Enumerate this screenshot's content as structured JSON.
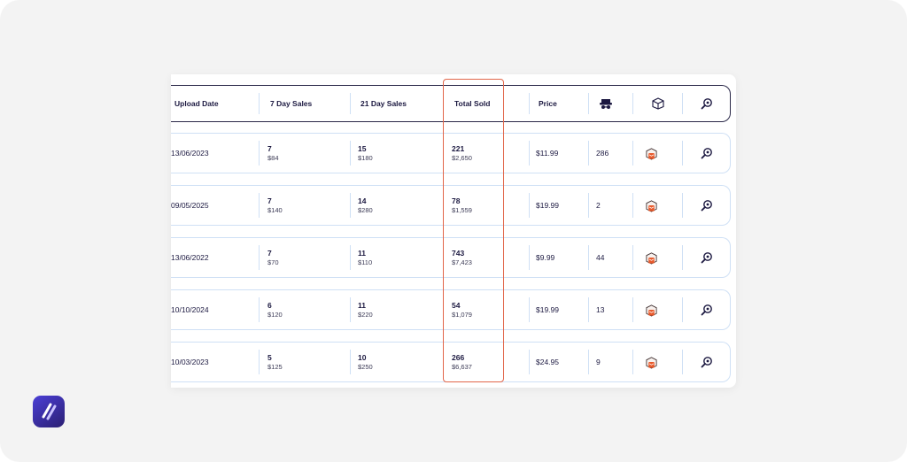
{
  "table": {
    "headers": {
      "upload_date": "Upload Date",
      "seven_day_sales": "7 Day Sales",
      "twentyone_day_sales": "21 Day Sales",
      "total_sold": "Total Sold",
      "price": "Price",
      "seller_icon": "seller-ranking-icon",
      "package_icon": "package-icon",
      "search_icon": "magnifier-icon"
    },
    "rows": [
      {
        "upload_date": "13/06/2023",
        "s7_units": "7",
        "s7_rev": "$84",
        "s21_units": "15",
        "s21_rev": "$180",
        "total_units": "221",
        "total_rev": "$2,650",
        "price": "$11.99",
        "rank": "286"
      },
      {
        "upload_date": "09/05/2025",
        "s7_units": "7",
        "s7_rev": "$140",
        "s21_units": "14",
        "s21_rev": "$280",
        "total_units": "78",
        "total_rev": "$1,559",
        "price": "$19.99",
        "rank": "2"
      },
      {
        "upload_date": "13/06/2022",
        "s7_units": "7",
        "s7_rev": "$70",
        "s21_units": "11",
        "s21_rev": "$110",
        "total_units": "743",
        "total_rev": "$7,423",
        "price": "$9.99",
        "rank": "44"
      },
      {
        "upload_date": "10/10/2024",
        "s7_units": "6",
        "s7_rev": "$120",
        "s21_units": "11",
        "s21_rev": "$220",
        "total_units": "54",
        "total_rev": "$1,079",
        "price": "$19.99",
        "rank": "13"
      },
      {
        "upload_date": "10/03/2023",
        "s7_units": "5",
        "s7_rev": "$125",
        "s21_units": "10",
        "s21_rev": "$250",
        "total_units": "266",
        "total_rev": "$6,637",
        "price": "$24.95",
        "rank": "9"
      }
    ]
  },
  "colors": {
    "highlight": "#e2664a",
    "text": "#1b1840",
    "row_border": "#cfe0f5",
    "package_orange": "#e85a2c",
    "logo_purple": "#4b3fd6"
  }
}
